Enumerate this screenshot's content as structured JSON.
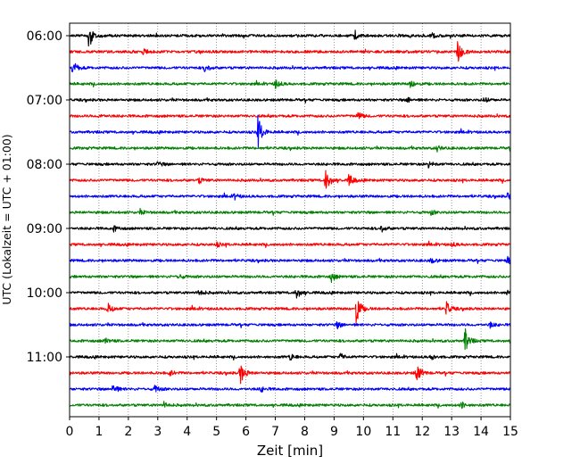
{
  "chart_data": {
    "type": "line",
    "chart_kind": "helicorder seismogram",
    "xlabel": "Zeit  [min]",
    "ylabel": "UTC (Lokalzeit = UTC + 01:00)",
    "xlim": [
      0,
      15
    ],
    "x_ticks": [
      "0",
      "1",
      "2",
      "3",
      "4",
      "5",
      "6",
      "7",
      "8",
      "9",
      "10",
      "11",
      "12",
      "13",
      "14",
      "15"
    ],
    "y_tick_labels": [
      "06:00",
      "07:00",
      "08:00",
      "09:00",
      "10:00",
      "11:00"
    ],
    "minutes_per_line": 15,
    "vertical_grid": "dotted",
    "trace_colors": [
      "#000000",
      "#ff0000",
      "#0000ff",
      "#008000"
    ],
    "traces": [
      {
        "start": "06:00",
        "color": "#000000",
        "events": [
          [
            0.65,
            1.0
          ],
          [
            9.7,
            0.35
          ],
          [
            12.3,
            0.25
          ]
        ]
      },
      {
        "start": "06:15",
        "color": "#ff0000",
        "events": [
          [
            13.2,
            0.9
          ],
          [
            2.5,
            0.2
          ]
        ]
      },
      {
        "start": "06:30",
        "color": "#0000ff",
        "events": [
          [
            0.1,
            0.5
          ],
          [
            4.6,
            0.35
          ]
        ]
      },
      {
        "start": "06:45",
        "color": "#008000",
        "events": [
          [
            7.0,
            0.35
          ],
          [
            11.6,
            0.3
          ]
        ]
      },
      {
        "start": "07:00",
        "color": "#000000",
        "events": [
          [
            11.5,
            0.2
          ],
          [
            14.1,
            0.2
          ]
        ]
      },
      {
        "start": "07:15",
        "color": "#ff0000",
        "events": [
          [
            9.8,
            0.3
          ],
          [
            1.0,
            0.15
          ]
        ]
      },
      {
        "start": "07:30",
        "color": "#0000ff",
        "events": [
          [
            6.4,
            1.2
          ]
        ]
      },
      {
        "start": "07:45",
        "color": "#008000",
        "events": [
          [
            12.5,
            0.2
          ]
        ]
      },
      {
        "start": "08:00",
        "color": "#000000",
        "events": [
          [
            12.2,
            0.25
          ],
          [
            3.0,
            0.2
          ]
        ]
      },
      {
        "start": "08:15",
        "color": "#ff0000",
        "events": [
          [
            8.7,
            0.95
          ],
          [
            9.5,
            0.45
          ],
          [
            4.4,
            0.2
          ]
        ]
      },
      {
        "start": "08:30",
        "color": "#0000ff",
        "events": [
          [
            5.6,
            0.2
          ],
          [
            14.9,
            0.2
          ]
        ]
      },
      {
        "start": "08:45",
        "color": "#008000",
        "events": [
          [
            2.4,
            0.15
          ],
          [
            12.3,
            0.15
          ]
        ]
      },
      {
        "start": "09:00",
        "color": "#000000",
        "events": [
          [
            10.6,
            0.25
          ],
          [
            1.5,
            0.2
          ]
        ]
      },
      {
        "start": "09:15",
        "color": "#ff0000",
        "events": [
          [
            5.0,
            0.15
          ],
          [
            13.0,
            0.15
          ]
        ]
      },
      {
        "start": "09:30",
        "color": "#0000ff",
        "events": [
          [
            14.9,
            0.3
          ],
          [
            12.3,
            0.2
          ]
        ]
      },
      {
        "start": "09:45",
        "color": "#008000",
        "events": [
          [
            8.9,
            0.35
          ],
          [
            3.7,
            0.2
          ]
        ]
      },
      {
        "start": "10:00",
        "color": "#000000",
        "events": [
          [
            7.7,
            0.45
          ],
          [
            4.4,
            0.25
          ],
          [
            14.9,
            0.25
          ]
        ]
      },
      {
        "start": "10:15",
        "color": "#ff0000",
        "events": [
          [
            9.75,
            1.1
          ],
          [
            12.8,
            0.55
          ],
          [
            1.3,
            0.4
          ]
        ]
      },
      {
        "start": "10:30",
        "color": "#0000ff",
        "events": [
          [
            9.1,
            0.25
          ],
          [
            14.3,
            0.2
          ]
        ]
      },
      {
        "start": "10:45",
        "color": "#008000",
        "events": [
          [
            13.45,
            0.9
          ],
          [
            1.2,
            0.2
          ]
        ]
      },
      {
        "start": "11:00",
        "color": "#000000",
        "events": [
          [
            7.5,
            0.25
          ],
          [
            9.2,
            0.25
          ],
          [
            12.3,
            0.2
          ]
        ]
      },
      {
        "start": "11:15",
        "color": "#ff0000",
        "events": [
          [
            5.8,
            0.85
          ],
          [
            11.8,
            0.75
          ],
          [
            3.4,
            0.2
          ]
        ]
      },
      {
        "start": "11:30",
        "color": "#0000ff",
        "events": [
          [
            1.45,
            0.45
          ],
          [
            2.9,
            0.3
          ],
          [
            6.5,
            0.2
          ]
        ]
      },
      {
        "start": "11:45",
        "color": "#008000",
        "events": [
          [
            13.3,
            0.25
          ],
          [
            3.2,
            0.2
          ]
        ]
      }
    ]
  }
}
